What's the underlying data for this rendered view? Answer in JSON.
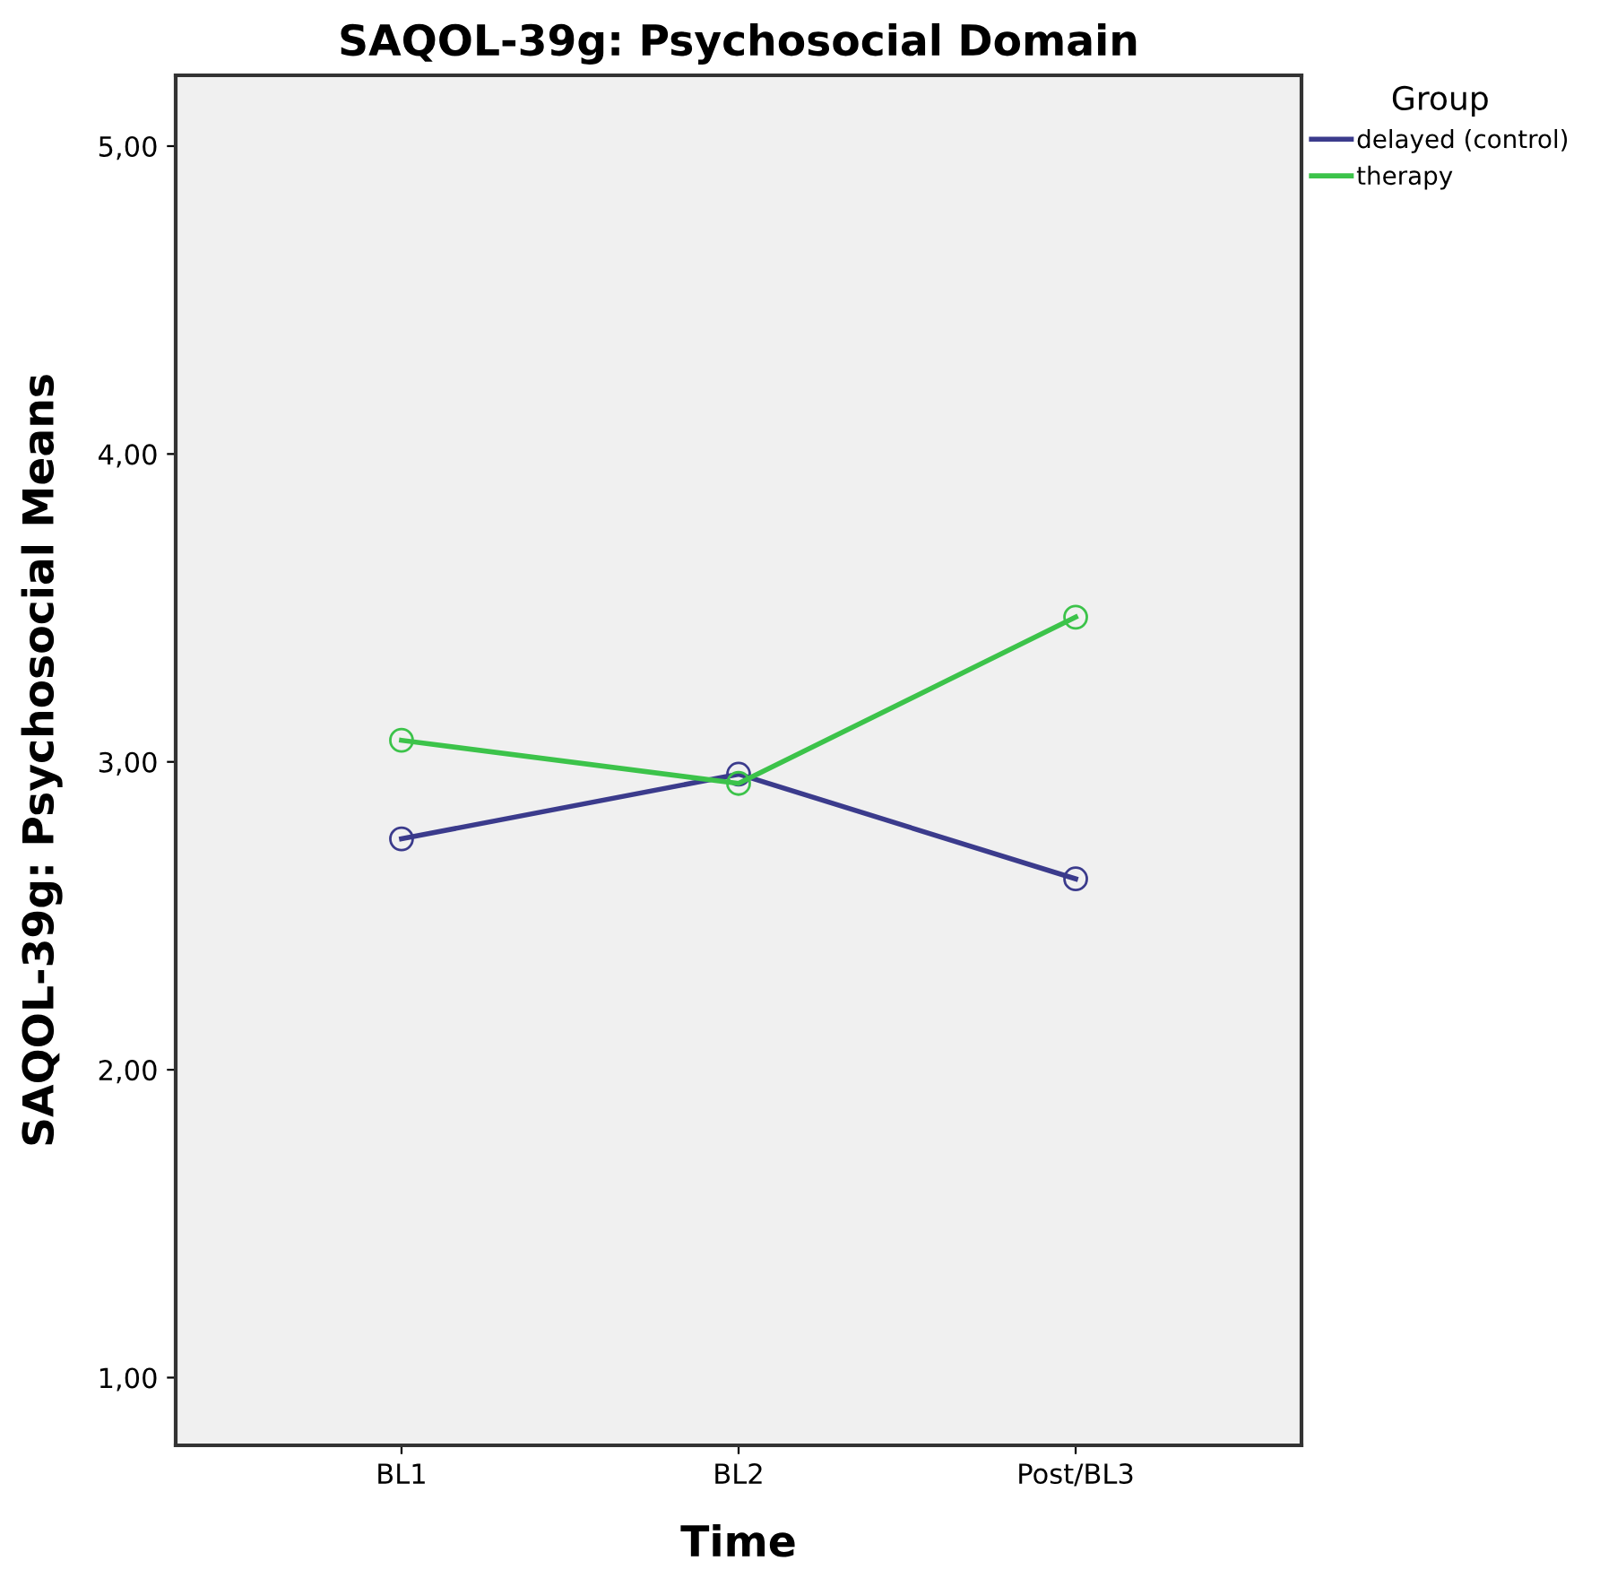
{
  "chart_data": {
    "type": "line",
    "title": "SAQOL-39g: Psychosocial Domain",
    "xlabel": "Time",
    "ylabel": "SAQOL-39g: Psychosocial Means",
    "legend_title": "Group",
    "categories": [
      "BL1",
      "BL2",
      "Post/BL3"
    ],
    "series": [
      {
        "name": "delayed (control)",
        "color": "#3b3b8c",
        "values": [
          2.75,
          2.96,
          2.62
        ]
      },
      {
        "name": "therapy",
        "color": "#3cc34a",
        "values": [
          3.07,
          2.93,
          3.47
        ]
      }
    ],
    "ylim": [
      0.78,
      5.23
    ],
    "yticks": [
      {
        "value": 1,
        "label": "1,00"
      },
      {
        "value": 2,
        "label": "2,00"
      },
      {
        "value": 3,
        "label": "3,00"
      },
      {
        "value": 4,
        "label": "4,00"
      },
      {
        "value": 5,
        "label": "5,00"
      }
    ],
    "marker": "circle",
    "line_style": "solid",
    "grid": false,
    "legend": "top right"
  }
}
